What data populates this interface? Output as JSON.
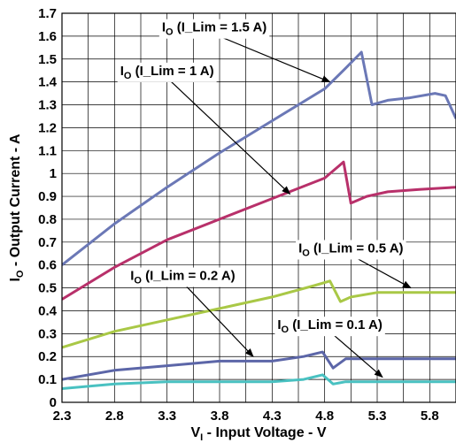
{
  "chart_data": {
    "type": "line",
    "xlabel_main": "V",
    "xlabel_sub": "I",
    "xlabel_rest": " - Input Voltage - V",
    "ylabel_main": "I",
    "ylabel_sub": "O",
    "ylabel_rest": " - Output Current - A",
    "xlim": [
      2.3,
      6.05
    ],
    "ylim": [
      0,
      1.7
    ],
    "x_ticks": [
      2.3,
      2.8,
      3.3,
      3.8,
      4.3,
      4.8,
      5.3,
      5.8
    ],
    "y_ticks": [
      0,
      0.1,
      0.2,
      0.3,
      0.4,
      0.5,
      0.6,
      0.7,
      0.8,
      0.9,
      1,
      1.1,
      1.2,
      1.3,
      1.4,
      1.5,
      1.6,
      1.7
    ],
    "x_grid_step": 0.25,
    "grid": true,
    "series": [
      {
        "name": "(I_Lim = 1.5 A)",
        "color": "#6B78B6",
        "x": [
          2.3,
          2.8,
          3.3,
          3.8,
          4.3,
          4.8,
          5.0,
          5.15,
          5.25,
          5.4,
          5.6,
          5.85,
          5.95,
          6.05
        ],
        "y": [
          0.6,
          0.78,
          0.94,
          1.09,
          1.23,
          1.37,
          1.46,
          1.53,
          1.3,
          1.32,
          1.33,
          1.35,
          1.34,
          1.24
        ]
      },
      {
        "name": "(I_Lim = 1 A)",
        "color": "#B8306A",
        "x": [
          2.3,
          2.8,
          3.3,
          3.8,
          4.3,
          4.8,
          4.98,
          5.05,
          5.2,
          5.4,
          5.7,
          6.05
        ],
        "y": [
          0.45,
          0.59,
          0.71,
          0.8,
          0.89,
          0.98,
          1.05,
          0.87,
          0.9,
          0.92,
          0.93,
          0.94
        ]
      },
      {
        "name": "(I_Lim = 0.5 A)",
        "color": "#A9C846",
        "x": [
          2.3,
          2.8,
          3.3,
          3.8,
          4.3,
          4.7,
          4.85,
          4.95,
          5.05,
          5.3,
          5.8,
          6.05
        ],
        "y": [
          0.24,
          0.31,
          0.36,
          0.41,
          0.46,
          0.51,
          0.53,
          0.44,
          0.46,
          0.48,
          0.48,
          0.48
        ]
      },
      {
        "name": "(I_Lim = 0.2 A)",
        "color": "#5C66A8",
        "x": [
          2.3,
          2.8,
          3.3,
          3.8,
          4.3,
          4.6,
          4.78,
          4.88,
          5.0,
          5.3,
          5.8,
          6.05
        ],
        "y": [
          0.1,
          0.14,
          0.16,
          0.18,
          0.18,
          0.2,
          0.22,
          0.15,
          0.19,
          0.19,
          0.19,
          0.19
        ]
      },
      {
        "name": "(I_Lim = 0.1 A)",
        "color": "#49C1C1",
        "x": [
          2.3,
          2.8,
          3.3,
          3.8,
          4.3,
          4.6,
          4.78,
          4.88,
          5.0,
          5.3,
          5.8,
          6.05
        ],
        "y": [
          0.06,
          0.08,
          0.09,
          0.09,
          0.09,
          0.1,
          0.12,
          0.08,
          0.09,
          0.09,
          0.09,
          0.09
        ]
      }
    ],
    "annotations": [
      {
        "main": "I",
        "sub": "O",
        "text": " (I_Lim = 1.5 A)",
        "at_x": 3.75,
        "at_y": 1.62,
        "arrow_to_x": 4.85,
        "arrow_to_y": 1.4
      },
      {
        "main": "I",
        "sub": "O",
        "text": " (I_Lim = 1 A)",
        "at_x": 3.3,
        "at_y": 1.43,
        "arrow_to_x": 4.47,
        "arrow_to_y": 0.91
      },
      {
        "main": "I",
        "sub": "O",
        "text": " (I_Lim = 0.5 A)",
        "at_x": 5.05,
        "at_y": 0.655,
        "arrow_to_x": 5.62,
        "arrow_to_y": 0.5
      },
      {
        "main": "I",
        "sub": "O",
        "text": " (I_Lim = 0.2 A)",
        "at_x": 3.45,
        "at_y": 0.535,
        "arrow_to_x": 4.12,
        "arrow_to_y": 0.2
      },
      {
        "main": "I",
        "sub": "O",
        "text": " (I_Lim = 0.1 A)",
        "at_x": 4.85,
        "at_y": 0.32,
        "arrow_to_x": 5.35,
        "arrow_to_y": 0.11
      }
    ]
  }
}
